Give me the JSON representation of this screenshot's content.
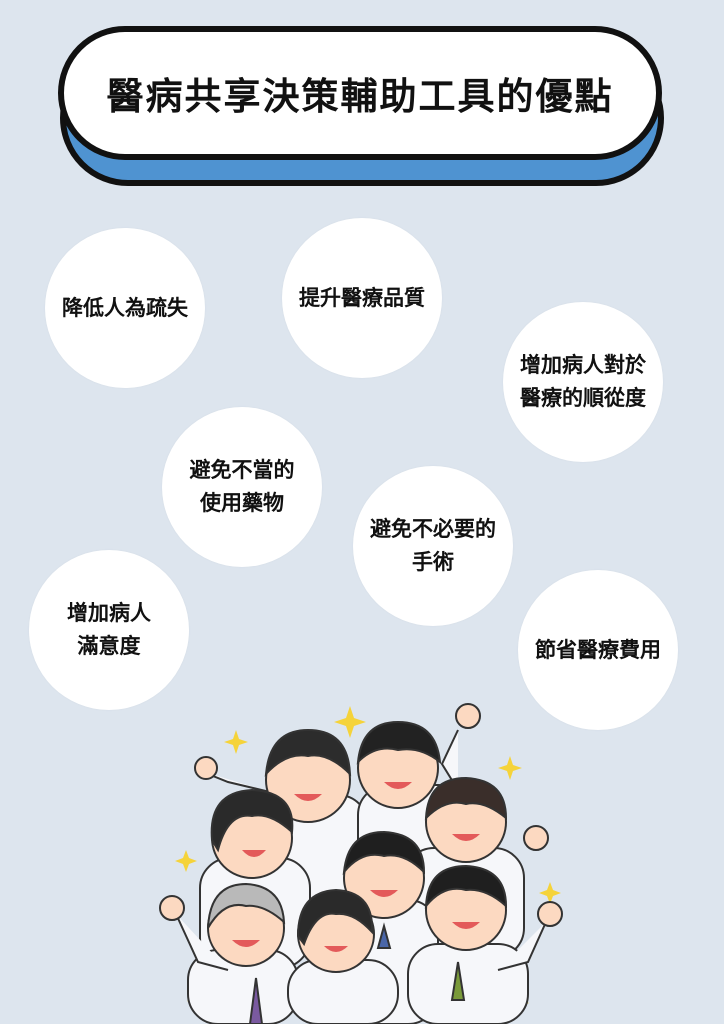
{
  "title": "醫病共享決策輔助工具的優點",
  "benefits": [
    "降低人為疏失",
    "提升醫療品質",
    "增加病人對於\n醫療的順從度",
    "避免不當的\n使用藥物",
    "避免不必要的\n手術",
    "增加病人\n滿意度",
    "節省醫療費用"
  ],
  "colors": {
    "background": "#dde5ee",
    "accent": "#4f93d1",
    "outline": "#111111"
  }
}
